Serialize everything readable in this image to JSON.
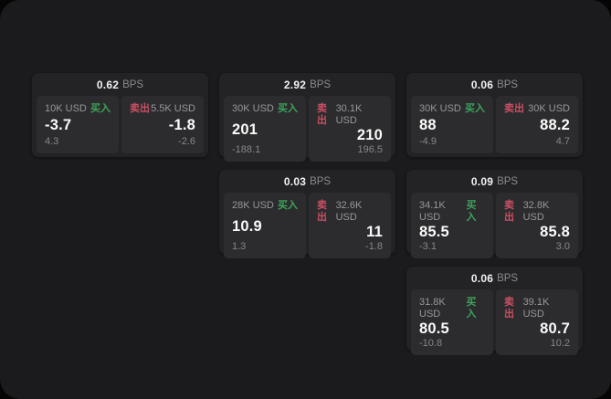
{
  "labels": {
    "buy": "买入",
    "sell": "卖出",
    "bps_unit": "BPS"
  },
  "colors": {
    "buy_tag": "#3ea35c",
    "sell_tag": "#c94f62",
    "panel_bg": "#1b1b1d",
    "card_bg": "#232325",
    "tile_bg": "#2c2c2e"
  },
  "cards": [
    {
      "row": 1,
      "col": 1,
      "bps": "0.62",
      "buy": {
        "size": "10K USD",
        "price": "-3.7",
        "delta": "4.3"
      },
      "sell": {
        "size": "5.5K USD",
        "price": "-1.8",
        "delta": "-2.6"
      }
    },
    {
      "row": 1,
      "col": 2,
      "bps": "2.92",
      "buy": {
        "size": "30K USD",
        "price": "201",
        "delta": "-188.1"
      },
      "sell": {
        "size": "30.1K USD",
        "price": "210",
        "delta": "196.5"
      }
    },
    {
      "row": 1,
      "col": 3,
      "bps": "0.06",
      "buy": {
        "size": "30K USD",
        "price": "88",
        "delta": "-4.9"
      },
      "sell": {
        "size": "30K USD",
        "price": "88.2",
        "delta": "4.7"
      }
    },
    {
      "row": 2,
      "col": 2,
      "bps": "0.03",
      "buy": {
        "size": "28K USD",
        "price": "10.9",
        "delta": "1.3"
      },
      "sell": {
        "size": "32.6K USD",
        "price": "11",
        "delta": "-1.8"
      }
    },
    {
      "row": 2,
      "col": 3,
      "bps": "0.09",
      "buy": {
        "size": "34.1K USD",
        "price": "85.5",
        "delta": "-3.1"
      },
      "sell": {
        "size": "32.8K USD",
        "price": "85.8",
        "delta": "3.0"
      }
    },
    {
      "row": 3,
      "col": 3,
      "bps": "0.06",
      "buy": {
        "size": "31.8K USD",
        "price": "80.5",
        "delta": "-10.8"
      },
      "sell": {
        "size": "39.1K USD",
        "price": "80.7",
        "delta": "10.2"
      }
    }
  ]
}
